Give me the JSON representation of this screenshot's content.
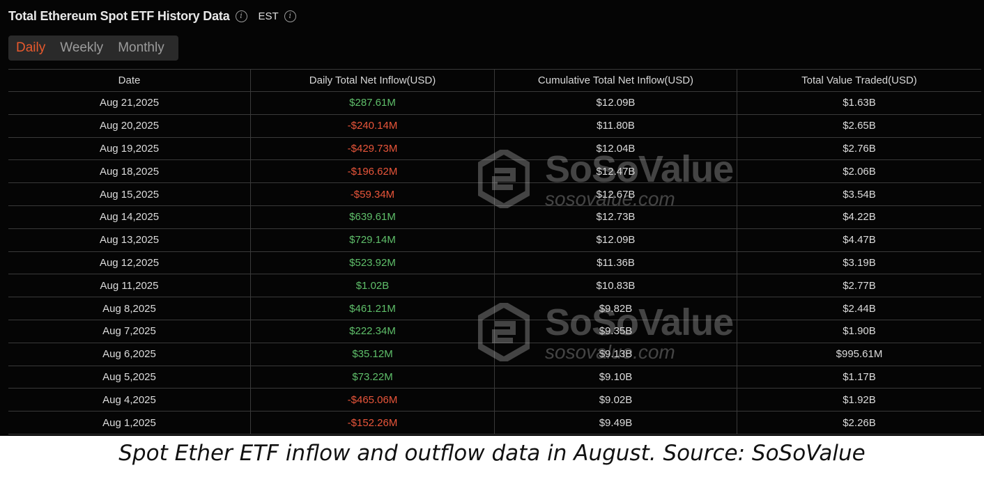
{
  "header": {
    "title": "Total Ethereum Spot ETF History Data",
    "timezone": "EST"
  },
  "tabs": [
    {
      "label": "Daily",
      "active": true
    },
    {
      "label": "Weekly",
      "active": false
    },
    {
      "label": "Monthly",
      "active": false
    }
  ],
  "table": {
    "columns": [
      "Date",
      "Daily Total Net Inflow(USD)",
      "Cumulative Total Net Inflow(USD)",
      "Total Value Traded(USD)"
    ],
    "rows": [
      {
        "date": "Aug 21,2025",
        "inflow": "$287.61M",
        "dir": "pos",
        "cumulative": "$12.09B",
        "traded": "$1.63B"
      },
      {
        "date": "Aug 20,2025",
        "inflow": "-$240.14M",
        "dir": "neg",
        "cumulative": "$11.80B",
        "traded": "$2.65B"
      },
      {
        "date": "Aug 19,2025",
        "inflow": "-$429.73M",
        "dir": "neg",
        "cumulative": "$12.04B",
        "traded": "$2.76B"
      },
      {
        "date": "Aug 18,2025",
        "inflow": "-$196.62M",
        "dir": "neg",
        "cumulative": "$12.47B",
        "traded": "$2.06B"
      },
      {
        "date": "Aug 15,2025",
        "inflow": "-$59.34M",
        "dir": "neg",
        "cumulative": "$12.67B",
        "traded": "$3.54B"
      },
      {
        "date": "Aug 14,2025",
        "inflow": "$639.61M",
        "dir": "pos",
        "cumulative": "$12.73B",
        "traded": "$4.22B"
      },
      {
        "date": "Aug 13,2025",
        "inflow": "$729.14M",
        "dir": "pos",
        "cumulative": "$12.09B",
        "traded": "$4.47B"
      },
      {
        "date": "Aug 12,2025",
        "inflow": "$523.92M",
        "dir": "pos",
        "cumulative": "$11.36B",
        "traded": "$3.19B"
      },
      {
        "date": "Aug 11,2025",
        "inflow": "$1.02B",
        "dir": "pos",
        "cumulative": "$10.83B",
        "traded": "$2.77B"
      },
      {
        "date": "Aug 8,2025",
        "inflow": "$461.21M",
        "dir": "pos",
        "cumulative": "$9.82B",
        "traded": "$2.44B"
      },
      {
        "date": "Aug 7,2025",
        "inflow": "$222.34M",
        "dir": "pos",
        "cumulative": "$9.35B",
        "traded": "$1.90B"
      },
      {
        "date": "Aug 6,2025",
        "inflow": "$35.12M",
        "dir": "pos",
        "cumulative": "$9.13B",
        "traded": "$995.61M"
      },
      {
        "date": "Aug 5,2025",
        "inflow": "$73.22M",
        "dir": "pos",
        "cumulative": "$9.10B",
        "traded": "$1.17B"
      },
      {
        "date": "Aug 4,2025",
        "inflow": "-$465.06M",
        "dir": "neg",
        "cumulative": "$9.02B",
        "traded": "$1.92B"
      },
      {
        "date": "Aug 1,2025",
        "inflow": "-$152.26M",
        "dir": "neg",
        "cumulative": "$9.49B",
        "traded": "$2.26B"
      }
    ]
  },
  "watermark": {
    "brand": "SoSoValue",
    "url": "sosovalue.com"
  },
  "caption": "Spot Ether ETF inflow and outflow data in August. Source: SoSoValue",
  "colors": {
    "positive": "#5fbf6a",
    "negative": "#e8553a",
    "active_tab": "#e8592d",
    "background": "#050505"
  }
}
